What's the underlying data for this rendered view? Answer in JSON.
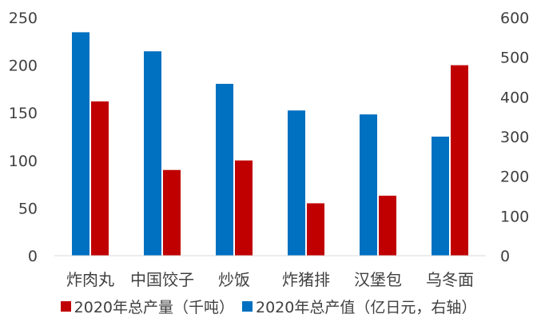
{
  "chart_data": {
    "type": "bar",
    "categories": [
      "炸肉丸",
      "中国饺子",
      "炒饭",
      "炸猪排",
      "汉堡包",
      "乌冬面"
    ],
    "series": [
      {
        "name": "2020年总产值（亿日元，右轴）",
        "axis": "right",
        "color": "#0070C0",
        "values": [
          563,
          515,
          433,
          366,
          356,
          300
        ]
      },
      {
        "name": "2020年总产量（千吨）",
        "axis": "left",
        "color": "#C00000",
        "values": [
          162,
          90,
          100,
          55,
          63,
          200
        ]
      }
    ],
    "y_left": {
      "ylim": [
        0,
        250
      ],
      "ticks": [
        "0",
        "50",
        "100",
        "150",
        "200",
        "250"
      ]
    },
    "y_right": {
      "ylim": [
        0,
        600
      ],
      "ticks": [
        "0",
        "100",
        "200",
        "300",
        "400",
        "500",
        "600"
      ]
    },
    "grid": false,
    "legend_position": "bottom",
    "legend_order": [
      "2020年总产量（千吨）",
      "2020年总产值（亿日元，右轴）"
    ]
  }
}
